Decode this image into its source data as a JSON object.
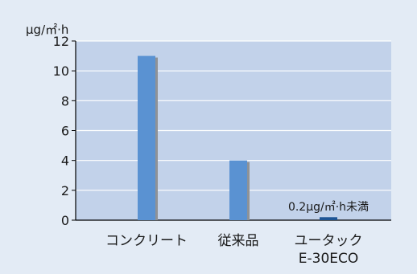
{
  "chart_data": {
    "type": "bar",
    "ylabel": "μg/㎡·h",
    "ylim": [
      0,
      12
    ],
    "yticks": [
      "0",
      "2",
      "4",
      "6",
      "8",
      "10",
      "12"
    ],
    "categories": [
      [
        "コンクリート"
      ],
      [
        "従来品"
      ],
      [
        "ユータック",
        "E-30ECO"
      ]
    ],
    "values": [
      11,
      4,
      0.2
    ],
    "annotations": [
      "",
      "",
      "0.2μg/㎡·h未満"
    ],
    "grid": true,
    "legend": "none",
    "colors": {
      "background": "#e3ebf5",
      "plot_background": "#c2d2ea",
      "gridline": "#ffffff",
      "bar": "#5a92d2",
      "bar_shadow": "#8f9296",
      "bar_highlight": "#1e5595",
      "axis": "#000000",
      "text": "#1a1a1a"
    }
  }
}
